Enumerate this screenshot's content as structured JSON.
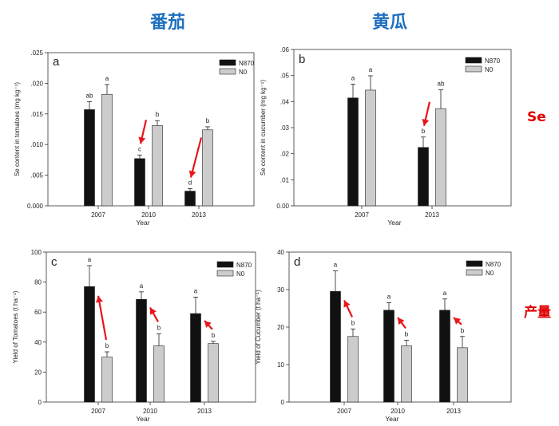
{
  "headings": {
    "tomato": "番茄",
    "cucumber": "黄瓜"
  },
  "row_labels": {
    "se": "Se",
    "yield": "产量"
  },
  "colors": {
    "n870": "#111111",
    "n0": "#cccccc",
    "arrow": "#e8151b",
    "heading": "#1f6fbf",
    "side": "#e00000"
  },
  "chart_data": [
    {
      "panel": "a",
      "type": "bar",
      "categories": [
        "2007",
        "2010",
        "2013"
      ],
      "xlabel": "Year",
      "ylabel": "Se content in tomatoes (mg kg⁻¹)",
      "ylim": [
        0,
        0.025
      ],
      "yticks": [
        0,
        0.005,
        0.01,
        0.015,
        0.02,
        0.025
      ],
      "ytick_labels": [
        "0.000",
        ".005",
        ".010",
        ".015",
        ".020",
        ".025"
      ],
      "legend": [
        "N870",
        "N0"
      ],
      "series": [
        {
          "name": "N870",
          "values": [
            0.0157,
            0.0077,
            0.0024
          ],
          "errors": [
            0.0013,
            0.0006,
            0.0004
          ],
          "labels": [
            "ab",
            "c",
            "d"
          ]
        },
        {
          "name": "N0",
          "values": [
            0.0182,
            0.0131,
            0.0124
          ],
          "errors": [
            0.0016,
            0.0008,
            0.0005
          ],
          "labels": [
            "a",
            "b",
            "b"
          ]
        }
      ],
      "arrows": [
        {
          "category": 1,
          "direction": "down"
        },
        {
          "category": 2,
          "direction": "down"
        }
      ]
    },
    {
      "panel": "b",
      "type": "bar",
      "categories": [
        "2007",
        "2013"
      ],
      "xlabel": "Year",
      "ylabel": "Se content in cucumber (mg kg⁻¹)",
      "ylim": [
        0,
        0.06
      ],
      "yticks": [
        0,
        0.01,
        0.02,
        0.03,
        0.04,
        0.05,
        0.06
      ],
      "ytick_labels": [
        "0.00",
        ".01",
        ".02",
        ".03",
        ".04",
        ".05",
        ".06"
      ],
      "legend": [
        "N870",
        "N0"
      ],
      "series": [
        {
          "name": "N870",
          "values": [
            0.0414,
            0.0224
          ],
          "errors": [
            0.0053,
            0.004
          ],
          "labels": [
            "a",
            "b"
          ]
        },
        {
          "name": "N0",
          "values": [
            0.0444,
            0.0373
          ],
          "errors": [
            0.0055,
            0.0072
          ],
          "labels": [
            "a",
            "ab"
          ]
        }
      ],
      "arrows": [
        {
          "category": 1,
          "direction": "down"
        }
      ]
    },
    {
      "panel": "c",
      "type": "bar",
      "categories": [
        "2007",
        "2010",
        "2013"
      ],
      "xlabel": "Year",
      "ylabel": "Yield of Tomatoes (t ha⁻¹)",
      "ylim": [
        0,
        100
      ],
      "yticks": [
        0,
        20,
        40,
        60,
        80,
        100
      ],
      "ytick_labels": [
        "0",
        "20",
        "40",
        "60",
        "80",
        "100"
      ],
      "legend": [
        "N870",
        "N0"
      ],
      "series": [
        {
          "name": "N870",
          "values": [
            77,
            68.5,
            59
          ],
          "errors": [
            14,
            5,
            11
          ],
          "labels": [
            "a",
            "a",
            "a"
          ]
        },
        {
          "name": "N0",
          "values": [
            30,
            37.5,
            39
          ],
          "errors": [
            3.5,
            8,
            1.5
          ],
          "labels": [
            "b",
            "b",
            "b"
          ]
        }
      ],
      "arrows": [
        {
          "category": 0,
          "direction": "up"
        },
        {
          "category": 1,
          "direction": "up"
        },
        {
          "category": 2,
          "direction": "up"
        }
      ]
    },
    {
      "panel": "d",
      "type": "bar",
      "categories": [
        "2007",
        "2010",
        "2013"
      ],
      "xlabel": "Year",
      "ylabel": "Yield of Cucumber (t ha⁻¹)",
      "ylim": [
        0,
        40
      ],
      "yticks": [
        0,
        10,
        20,
        30,
        40
      ],
      "ytick_labels": [
        "0",
        "10",
        "20",
        "30",
        "40"
      ],
      "legend": [
        "N870",
        "N0"
      ],
      "series": [
        {
          "name": "N870",
          "values": [
            29.5,
            24.5,
            24.5
          ],
          "errors": [
            5.5,
            2.0,
            3.0
          ],
          "labels": [
            "a",
            "a",
            "a"
          ]
        },
        {
          "name": "N0",
          "values": [
            17.5,
            15,
            14.5
          ],
          "errors": [
            2.0,
            1.5,
            3.0
          ],
          "labels": [
            "b",
            "b",
            "b"
          ]
        }
      ],
      "arrows": [
        {
          "category": 0,
          "direction": "up"
        },
        {
          "category": 1,
          "direction": "up"
        },
        {
          "category": 2,
          "direction": "up"
        }
      ]
    }
  ]
}
